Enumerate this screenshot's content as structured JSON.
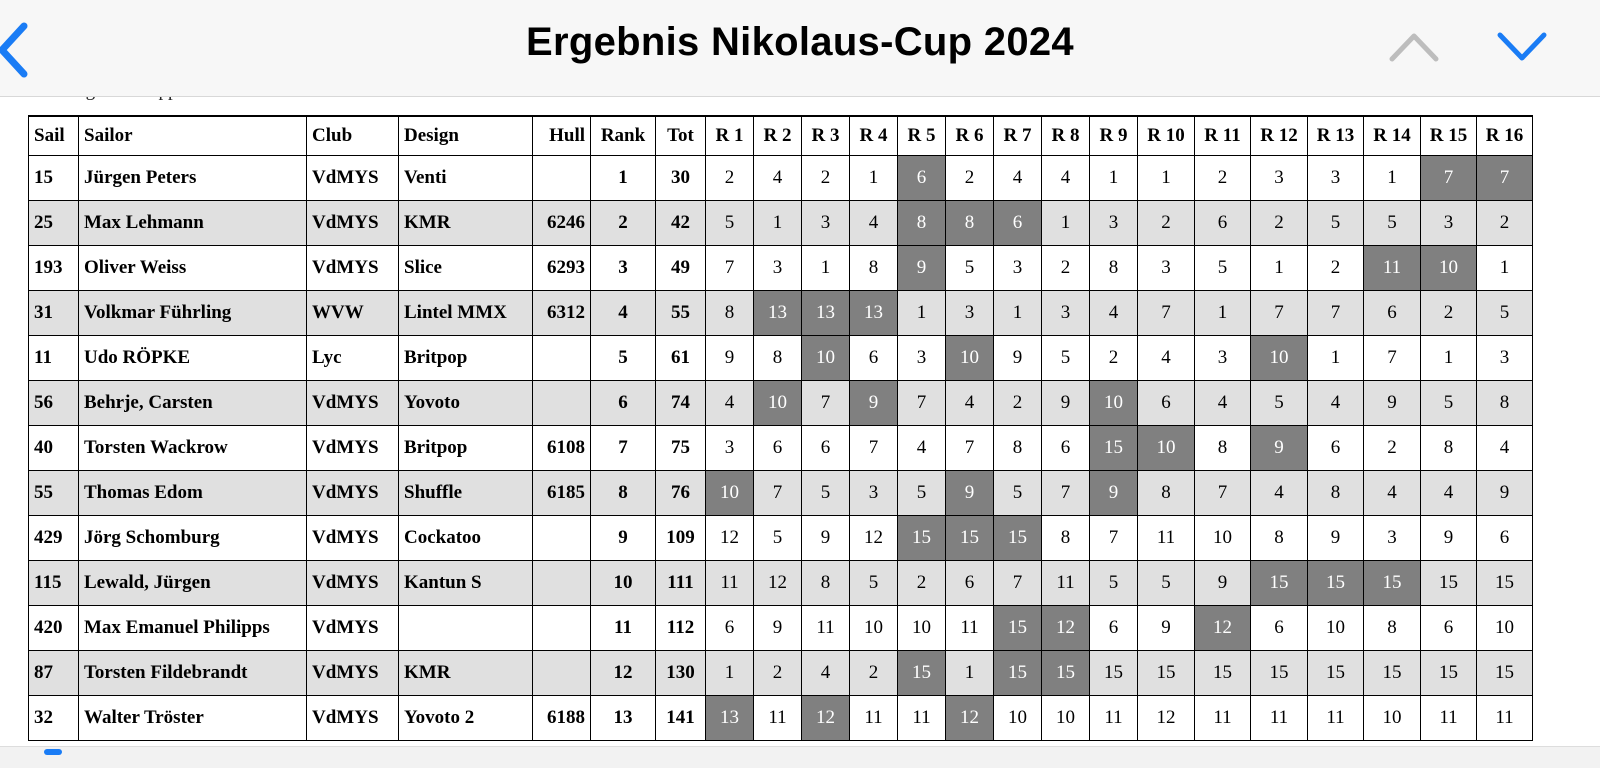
{
  "nav": {
    "title": "Ergebnis Nikolaus-Cup 2024",
    "back_icon": "chevron-left-icon",
    "prev_icon": "chevron-up-icon",
    "next_icon": "chevron-down-icon",
    "accent_color": "#1a7cf5",
    "disabled_color": "#bdbdbd"
  },
  "scoring_text": "Scoring: RRS Appendix A",
  "colors": {
    "alt_row": "#e0e0e0",
    "discard": "#808080"
  },
  "table": {
    "headers": [
      "Sail",
      "Sailor",
      "Club",
      "Design",
      "Hull",
      "Rank",
      "Tot",
      "R 1",
      "R 2",
      "R 3",
      "R 4",
      "R 5",
      "R 6",
      "R 7",
      "R 8",
      "R 9",
      "R 10",
      "R 11",
      "R 12",
      "R 13",
      "R 14",
      "R 15",
      "R 16"
    ],
    "rows": [
      {
        "sail": "15",
        "sailor": "Jürgen Peters",
        "club": "VdMYS",
        "design": "Venti",
        "hull": "",
        "rank": "1",
        "tot": "30",
        "races": [
          "2",
          "4",
          "2",
          "1",
          "6",
          "2",
          "4",
          "4",
          "1",
          "1",
          "2",
          "3",
          "3",
          "1",
          "7",
          "7"
        ],
        "discards": [
          5,
          15,
          16
        ]
      },
      {
        "sail": "25",
        "sailor": "Max Lehmann",
        "club": "VdMYS",
        "design": "KMR",
        "hull": "6246",
        "rank": "2",
        "tot": "42",
        "races": [
          "5",
          "1",
          "3",
          "4",
          "8",
          "8",
          "6",
          "1",
          "3",
          "2",
          "6",
          "2",
          "5",
          "5",
          "3",
          "2"
        ],
        "discards": [
          5,
          6,
          7
        ]
      },
      {
        "sail": "193",
        "sailor": "Oliver Weiss",
        "club": "VdMYS",
        "design": "Slice",
        "hull": "6293",
        "rank": "3",
        "tot": "49",
        "races": [
          "7",
          "3",
          "1",
          "8",
          "9",
          "5",
          "3",
          "2",
          "8",
          "3",
          "5",
          "1",
          "2",
          "11",
          "10",
          "1"
        ],
        "discards": [
          5,
          14,
          15
        ]
      },
      {
        "sail": "31",
        "sailor": "Volkmar Führling",
        "club": "WVW",
        "design": "Lintel MMX",
        "hull": "6312",
        "rank": "4",
        "tot": "55",
        "races": [
          "8",
          "13",
          "13",
          "13",
          "1",
          "3",
          "1",
          "3",
          "4",
          "7",
          "1",
          "7",
          "7",
          "6",
          "2",
          "5"
        ],
        "discards": [
          2,
          3,
          4
        ]
      },
      {
        "sail": "11",
        "sailor": "Udo RÖPKE",
        "club": "Lyc",
        "design": "Britpop",
        "hull": "",
        "rank": "5",
        "tot": "61",
        "races": [
          "9",
          "8",
          "10",
          "6",
          "3",
          "10",
          "9",
          "5",
          "2",
          "4",
          "3",
          "10",
          "1",
          "7",
          "1",
          "3"
        ],
        "discards": [
          3,
          6,
          12
        ]
      },
      {
        "sail": "56",
        "sailor": "Behrje, Carsten",
        "club": "VdMYS",
        "design": "Yovoto",
        "hull": "",
        "rank": "6",
        "tot": "74",
        "races": [
          "4",
          "10",
          "7",
          "9",
          "7",
          "4",
          "2",
          "9",
          "10",
          "6",
          "4",
          "5",
          "4",
          "9",
          "5",
          "8"
        ],
        "discards": [
          2,
          4,
          9
        ]
      },
      {
        "sail": "40",
        "sailor": "Torsten Wackrow",
        "club": "VdMYS",
        "design": "Britpop",
        "hull": "6108",
        "rank": "7",
        "tot": "75",
        "races": [
          "3",
          "6",
          "6",
          "7",
          "4",
          "7",
          "8",
          "6",
          "15",
          "10",
          "8",
          "9",
          "6",
          "2",
          "8",
          "4"
        ],
        "discards": [
          9,
          10,
          12
        ]
      },
      {
        "sail": "55",
        "sailor": "Thomas Edom",
        "club": "VdMYS",
        "design": "Shuffle",
        "hull": "6185",
        "rank": "8",
        "tot": "76",
        "races": [
          "10",
          "7",
          "5",
          "3",
          "5",
          "9",
          "5",
          "7",
          "9",
          "8",
          "7",
          "4",
          "8",
          "4",
          "4",
          "9"
        ],
        "discards": [
          1,
          6,
          9
        ]
      },
      {
        "sail": "429",
        "sailor": "Jörg Schomburg",
        "club": "VdMYS",
        "design": "Cockatoo",
        "hull": "",
        "rank": "9",
        "tot": "109",
        "races": [
          "12",
          "5",
          "9",
          "12",
          "15",
          "15",
          "15",
          "8",
          "7",
          "11",
          "10",
          "8",
          "9",
          "3",
          "9",
          "6"
        ],
        "discards": [
          5,
          6,
          7
        ]
      },
      {
        "sail": "115",
        "sailor": "Lewald, Jürgen",
        "club": "VdMYS",
        "design": "Kantun S",
        "hull": "",
        "rank": "10",
        "tot": "111",
        "races": [
          "11",
          "12",
          "8",
          "5",
          "2",
          "6",
          "7",
          "11",
          "5",
          "5",
          "9",
          "15",
          "15",
          "15",
          "15",
          "15"
        ],
        "discards": [
          12,
          13,
          14
        ]
      },
      {
        "sail": "420",
        "sailor": "Max Emanuel Philipps",
        "club": "VdMYS",
        "design": "",
        "hull": "",
        "rank": "11",
        "tot": "112",
        "races": [
          "6",
          "9",
          "11",
          "10",
          "10",
          "11",
          "15",
          "12",
          "6",
          "9",
          "12",
          "6",
          "10",
          "8",
          "6",
          "10"
        ],
        "discards": [
          7,
          8,
          11
        ]
      },
      {
        "sail": "87",
        "sailor": "Torsten Fildebrandt",
        "club": "VdMYS",
        "design": "KMR",
        "hull": "",
        "rank": "12",
        "tot": "130",
        "races": [
          "1",
          "2",
          "4",
          "2",
          "15",
          "1",
          "15",
          "15",
          "15",
          "15",
          "15",
          "15",
          "15",
          "15",
          "15",
          "15"
        ],
        "discards": [
          5,
          7,
          8
        ]
      },
      {
        "sail": "32",
        "sailor": "Walter Tröster",
        "club": "VdMYS",
        "design": "Yovoto 2",
        "hull": "6188",
        "rank": "13",
        "tot": "141",
        "races": [
          "13",
          "11",
          "12",
          "11",
          "11",
          "12",
          "10",
          "10",
          "11",
          "12",
          "11",
          "11",
          "11",
          "10",
          "11",
          "11"
        ],
        "discards": [
          1,
          3,
          6
        ]
      }
    ]
  }
}
